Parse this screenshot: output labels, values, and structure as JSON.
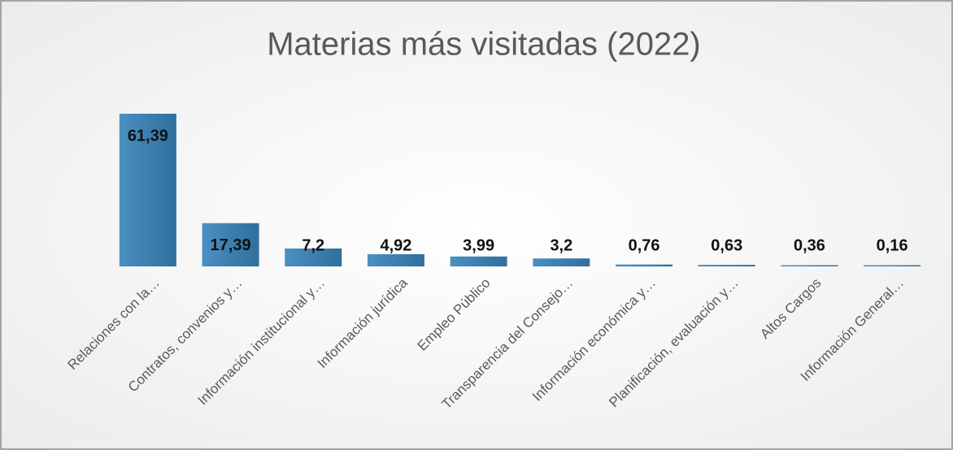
{
  "chart_data": {
    "type": "bar",
    "title": "Materias más visitadas (2022)",
    "categories": [
      "Relaciones con la…",
      "Contratos, convenios y…",
      "Información institucional y…",
      "Información jurídica",
      "Empleo Público",
      "Transparencia del Consejo…",
      "Información económica y…",
      "Planificación, evaluación y…",
      "Altos Cargos",
      "Información General…"
    ],
    "values": [
      61.39,
      17.39,
      7.2,
      4.92,
      3.99,
      3.2,
      0.76,
      0.63,
      0.36,
      0.16
    ],
    "value_labels": [
      "61,39",
      "17,39",
      "7,2",
      "4,92",
      "3,99",
      "3,2",
      "0,76",
      "0,63",
      "0,36",
      "0,16"
    ],
    "color": "#3b7fae"
  }
}
